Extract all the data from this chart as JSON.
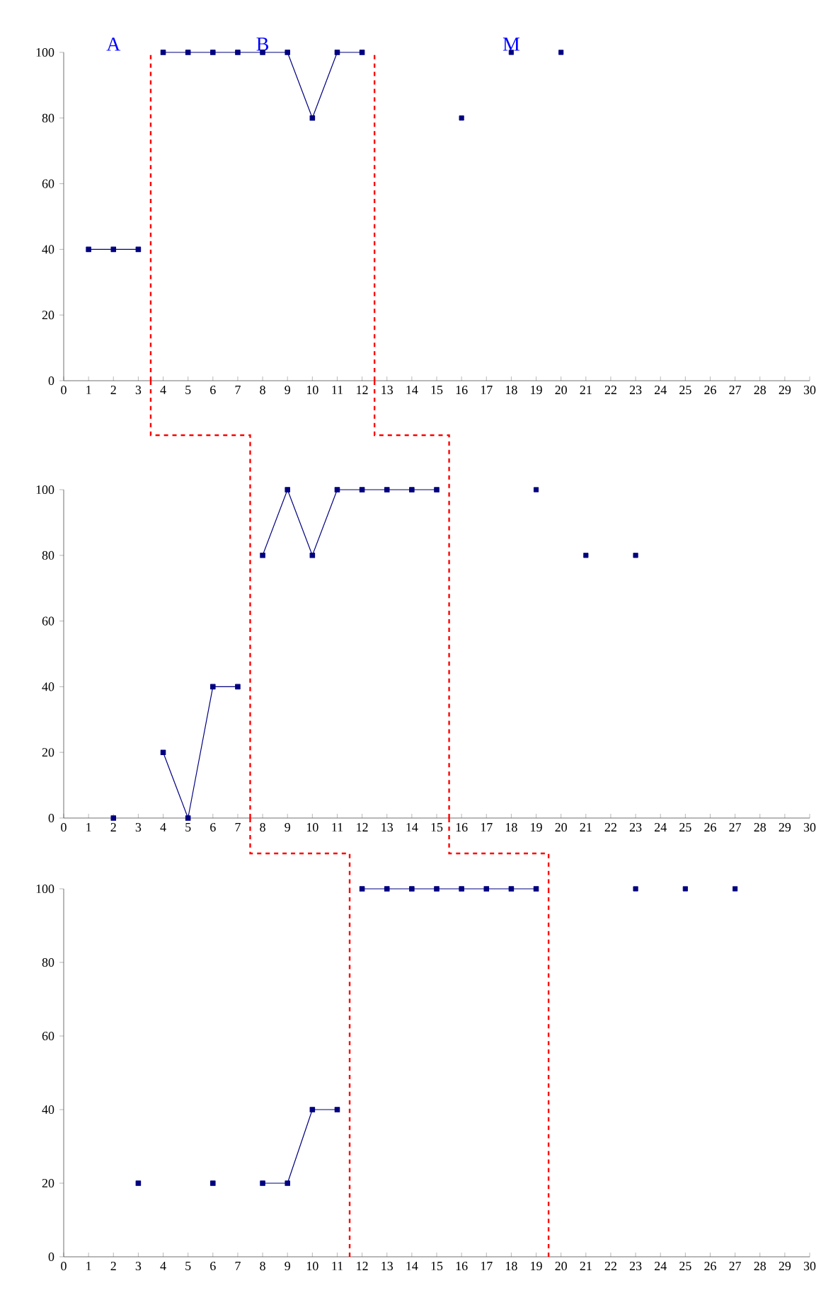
{
  "chart_data": [
    {
      "type": "line",
      "annotations": [
        "A",
        "B",
        "M"
      ],
      "xlim": [
        0,
        30
      ],
      "ylim": [
        0,
        100
      ],
      "xticks": [
        0,
        1,
        2,
        3,
        4,
        5,
        6,
        7,
        8,
        9,
        10,
        11,
        12,
        13,
        14,
        15,
        16,
        17,
        18,
        19,
        20,
        21,
        22,
        23,
        24,
        25,
        26,
        27,
        28,
        29,
        30
      ],
      "yticks": [
        0,
        20,
        40,
        60,
        80,
        100
      ],
      "marker": "square",
      "ref_lines": [
        {
          "axis": "x",
          "value": 3.5,
          "color": "#ff0000",
          "line_style": "dashed"
        },
        {
          "axis": "x",
          "value": 12.5,
          "color": "#ff0000",
          "line_style": "dashed"
        }
      ],
      "series": [
        {
          "type": "line",
          "color": "#000080",
          "x": [
            1,
            2,
            3
          ],
          "values": [
            40,
            40,
            40
          ]
        },
        {
          "type": "line",
          "color": "#000080",
          "x": [
            4,
            5,
            6,
            7,
            8,
            9,
            10,
            11,
            12
          ],
          "values": [
            100,
            100,
            100,
            100,
            100,
            100,
            80,
            100,
            100
          ]
        },
        {
          "type": "scatter",
          "color": "#000080",
          "x": [
            16,
            18,
            20
          ],
          "values": [
            80,
            100,
            100
          ]
        }
      ]
    },
    {
      "type": "line",
      "xlim": [
        0,
        30
      ],
      "ylim": [
        0,
        100
      ],
      "xticks": [
        0,
        1,
        2,
        3,
        4,
        5,
        6,
        7,
        8,
        9,
        10,
        11,
        12,
        13,
        14,
        15,
        16,
        17,
        18,
        19,
        20,
        21,
        22,
        23,
        24,
        25,
        26,
        27,
        28,
        29,
        30
      ],
      "yticks": [
        0,
        20,
        40,
        60,
        80,
        100
      ],
      "marker": "square",
      "ref_lines": [
        {
          "axis": "x",
          "value": 7.5,
          "color": "#ff0000",
          "line_style": "dashed"
        },
        {
          "axis": "x",
          "value": 15.5,
          "color": "#ff0000",
          "line_style": "dashed"
        }
      ],
      "series": [
        {
          "type": "line",
          "color": "#000080",
          "x": [
            2,
            3,
            4,
            5,
            6,
            7
          ],
          "values": [
            0,
            null,
            20,
            0,
            40,
            40
          ]
        },
        {
          "type": "line",
          "color": "#000080",
          "x": [
            8,
            9,
            10,
            11,
            12,
            13,
            14,
            15
          ],
          "values": [
            80,
            100,
            80,
            100,
            100,
            100,
            100,
            100
          ]
        },
        {
          "type": "scatter",
          "color": "#000080",
          "x": [
            19,
            21,
            23
          ],
          "values": [
            100,
            80,
            80
          ]
        }
      ]
    },
    {
      "type": "line",
      "xlim": [
        0,
        30
      ],
      "ylim": [
        0,
        100
      ],
      "xticks": [
        0,
        1,
        2,
        3,
        4,
        5,
        6,
        7,
        8,
        9,
        10,
        11,
        12,
        13,
        14,
        15,
        16,
        17,
        18,
        19,
        20,
        21,
        22,
        23,
        24,
        25,
        26,
        27,
        28,
        29,
        30
      ],
      "yticks": [
        0,
        20,
        40,
        60,
        80,
        100
      ],
      "marker": "square",
      "ref_lines": [
        {
          "axis": "x",
          "value": 11.5,
          "color": "#ff0000",
          "line_style": "dashed"
        },
        {
          "axis": "x",
          "value": 19.5,
          "color": "#ff0000",
          "line_style": "dashed"
        }
      ],
      "series": [
        {
          "type": "line",
          "color": "#000080",
          "x": [
            3,
            4,
            5,
            6,
            7,
            8,
            9,
            10,
            11
          ],
          "values": [
            20,
            null,
            null,
            20,
            null,
            20,
            20,
            40,
            40
          ]
        },
        {
          "type": "line",
          "color": "#000080",
          "x": [
            12,
            13,
            14,
            15,
            16,
            17,
            18,
            19
          ],
          "values": [
            100,
            100,
            100,
            100,
            100,
            100,
            100,
            100
          ]
        },
        {
          "type": "scatter",
          "color": "#000080",
          "x": [
            23,
            25,
            27
          ],
          "values": [
            100,
            100,
            100
          ]
        }
      ]
    }
  ]
}
